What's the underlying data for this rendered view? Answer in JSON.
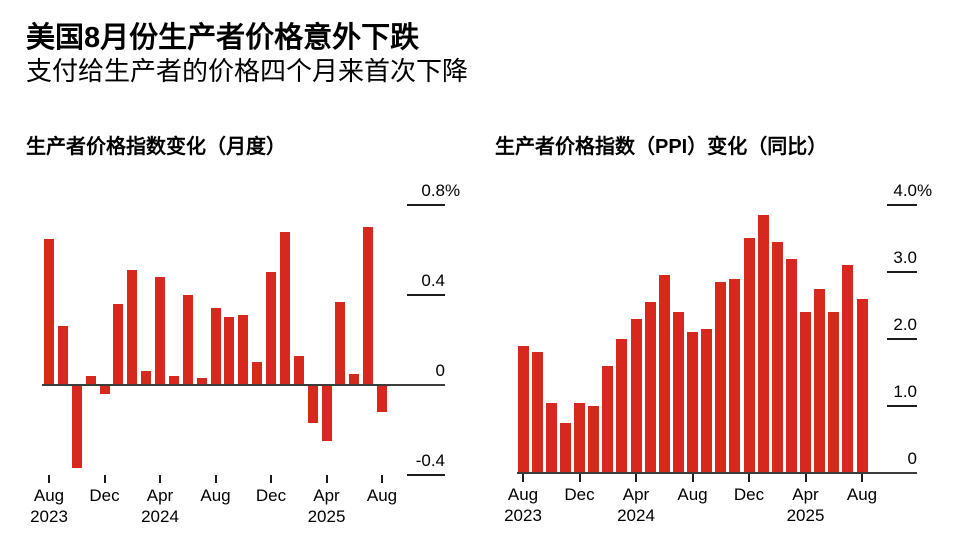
{
  "header": {
    "title": "美国8月份生产者价格意外下跌",
    "subtitle": "支付给生产者的价格四个月来首次下降"
  },
  "colors": {
    "bar": "#d7281d",
    "axis": "#3c3c3c",
    "tick": "#1c1c1c",
    "text": "#000000",
    "background": "#ffffff"
  },
  "chart_data": [
    {
      "type": "bar",
      "title": "生产者价格指数变化（月度）",
      "unit": "%",
      "x": [
        "Aug 2023",
        "Sep 2023",
        "Oct 2023",
        "Nov 2023",
        "Dec 2023",
        "Jan 2024",
        "Feb 2024",
        "Mar 2024",
        "Apr 2024",
        "May 2024",
        "Jun 2024",
        "Jul 2024",
        "Aug 2024",
        "Sep 2024",
        "Oct 2024",
        "Nov 2024",
        "Dec 2024",
        "Jan 2025",
        "Feb 2025",
        "Mar 2025",
        "Apr 2025",
        "May 2025",
        "Jun 2025",
        "Jul 2025",
        "Aug 2025"
      ],
      "values": [
        0.65,
        0.26,
        -0.37,
        0.04,
        -0.04,
        0.36,
        0.51,
        0.06,
        0.48,
        0.04,
        0.4,
        0.03,
        0.34,
        0.3,
        0.31,
        0.1,
        0.5,
        0.68,
        0.13,
        -0.17,
        -0.25,
        0.37,
        0.05,
        0.7,
        -0.12
      ],
      "ylim": [
        -0.4,
        0.8
      ],
      "grid": false,
      "legend": null,
      "yticks": [
        {
          "value": 0.8,
          "label": "0.8%"
        },
        {
          "value": 0.4,
          "label": "0.4"
        },
        {
          "value": 0,
          "label": "0"
        },
        {
          "value": -0.4,
          "label": "-0.4"
        }
      ],
      "xticks": [
        {
          "index": 0,
          "label": "Aug",
          "year": "2023"
        },
        {
          "index": 4,
          "label": "Dec"
        },
        {
          "index": 8,
          "label": "Apr",
          "year": "2024"
        },
        {
          "index": 12,
          "label": "Aug"
        },
        {
          "index": 16,
          "label": "Dec"
        },
        {
          "index": 20,
          "label": "Apr",
          "year": "2025"
        },
        {
          "index": 24,
          "label": "Aug"
        }
      ]
    },
    {
      "type": "bar",
      "title": "生产者价格指数（PPI）变化（同比）",
      "unit": "%",
      "x": [
        "Aug 2023",
        "Sep 2023",
        "Oct 2023",
        "Nov 2023",
        "Dec 2023",
        "Jan 2024",
        "Feb 2024",
        "Mar 2024",
        "Apr 2024",
        "May 2024",
        "Jun 2024",
        "Jul 2024",
        "Aug 2024",
        "Sep 2024",
        "Oct 2024",
        "Nov 2024",
        "Dec 2024",
        "Jan 2025",
        "Feb 2025",
        "Mar 2025",
        "Apr 2025",
        "May 2025",
        "Jun 2025",
        "Jul 2025",
        "Aug 2025"
      ],
      "values": [
        1.9,
        1.8,
        1.05,
        0.75,
        1.05,
        1.0,
        1.6,
        2.0,
        2.3,
        2.55,
        2.95,
        2.4,
        2.1,
        2.15,
        2.85,
        2.9,
        3.5,
        3.85,
        3.45,
        3.2,
        2.4,
        2.75,
        2.4,
        3.1,
        2.6
      ],
      "ylim": [
        0,
        4.0
      ],
      "grid": false,
      "legend": null,
      "yticks": [
        {
          "value": 4.0,
          "label": "4.0%"
        },
        {
          "value": 3.0,
          "label": "3.0"
        },
        {
          "value": 2.0,
          "label": "2.0"
        },
        {
          "value": 1.0,
          "label": "1.0"
        },
        {
          "value": 0,
          "label": "0"
        }
      ],
      "xticks": [
        {
          "index": 0,
          "label": "Aug",
          "year": "2023"
        },
        {
          "index": 4,
          "label": "Dec"
        },
        {
          "index": 8,
          "label": "Apr",
          "year": "2024"
        },
        {
          "index": 12,
          "label": "Aug"
        },
        {
          "index": 16,
          "label": "Dec"
        },
        {
          "index": 20,
          "label": "Apr",
          "year": "2025"
        },
        {
          "index": 24,
          "label": "Aug"
        }
      ]
    }
  ]
}
